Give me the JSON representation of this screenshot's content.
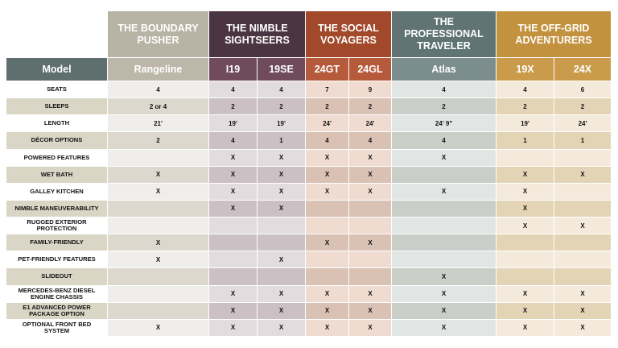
{
  "model_label": "Model",
  "groups": [
    {
      "title": "THE BOUNDARY PUSHER",
      "models": [
        "Rangeline"
      ]
    },
    {
      "title": "THE NIMBLE SIGHTSEERS",
      "models": [
        "I19",
        "19SE"
      ]
    },
    {
      "title": "THE SOCIAL VOYAGERS",
      "models": [
        "24GT",
        "24GL"
      ]
    },
    {
      "title": "THE PROFESSIONAL TRAVELER",
      "models": [
        "Atlas"
      ]
    },
    {
      "title": "THE OFF-GRID ADVENTURERS",
      "models": [
        "19X",
        "24X"
      ]
    }
  ],
  "rows": [
    {
      "feature": "SEATS",
      "values": [
        "4",
        "4",
        "4",
        "7",
        "9",
        "4",
        "4",
        "6"
      ]
    },
    {
      "feature": "SLEEPS",
      "values": [
        "2 or 4",
        "2",
        "2",
        "2",
        "2",
        "2",
        "2",
        "2"
      ]
    },
    {
      "feature": "LENGTH",
      "values": [
        "21'",
        "19'",
        "19'",
        "24'",
        "24'",
        "24' 9\"",
        "19'",
        "24'"
      ]
    },
    {
      "feature": "DÉCOR OPTIONS",
      "values": [
        "2",
        "4",
        "1",
        "4",
        "4",
        "4",
        "1",
        "1"
      ]
    },
    {
      "feature": "POWERED FEATURES",
      "values": [
        null,
        "X",
        "X",
        "X",
        "X",
        "X",
        null,
        null
      ]
    },
    {
      "feature": "WET BATH",
      "values": [
        "X",
        "X",
        "X",
        "X",
        "X",
        null,
        "X",
        "X"
      ]
    },
    {
      "feature": "GALLEY KITCHEN",
      "values": [
        "X",
        "X",
        "X",
        "X",
        "X",
        "X",
        "X",
        null
      ]
    },
    {
      "feature": "NIMBLE MANEUVERABILITY",
      "values": [
        null,
        "X",
        "X",
        null,
        null,
        null,
        "X",
        null
      ]
    },
    {
      "feature": "RUGGED EXTERIOR PROTECTION",
      "values": [
        null,
        null,
        null,
        null,
        null,
        null,
        "X",
        "X"
      ]
    },
    {
      "feature": "FAMILY-FRIENDLY",
      "values": [
        "X",
        null,
        null,
        "X",
        "X",
        null,
        null,
        null
      ]
    },
    {
      "feature": "PET-FRIENDLY FEATURES",
      "values": [
        "X",
        null,
        "X",
        null,
        null,
        null,
        null,
        null
      ]
    },
    {
      "feature": "SLIDEOUT",
      "values": [
        null,
        null,
        null,
        null,
        null,
        "X",
        null,
        null
      ]
    },
    {
      "feature": "MERCEDES-BENZ DIESEL ENGINE CHASSIS",
      "values": [
        null,
        "X",
        "X",
        "X",
        "X",
        "X",
        "X",
        "X"
      ]
    },
    {
      "feature": "E1 ADVANCED POWER PACKAGE OPTION",
      "values": [
        null,
        "X",
        "X",
        "X",
        "X",
        "X",
        "X",
        "X"
      ]
    },
    {
      "feature": "OPTIONAL FRONT BED SYSTEM",
      "values": [
        "X",
        "X",
        "X",
        "X",
        "X",
        "X",
        "X",
        "X"
      ]
    }
  ]
}
